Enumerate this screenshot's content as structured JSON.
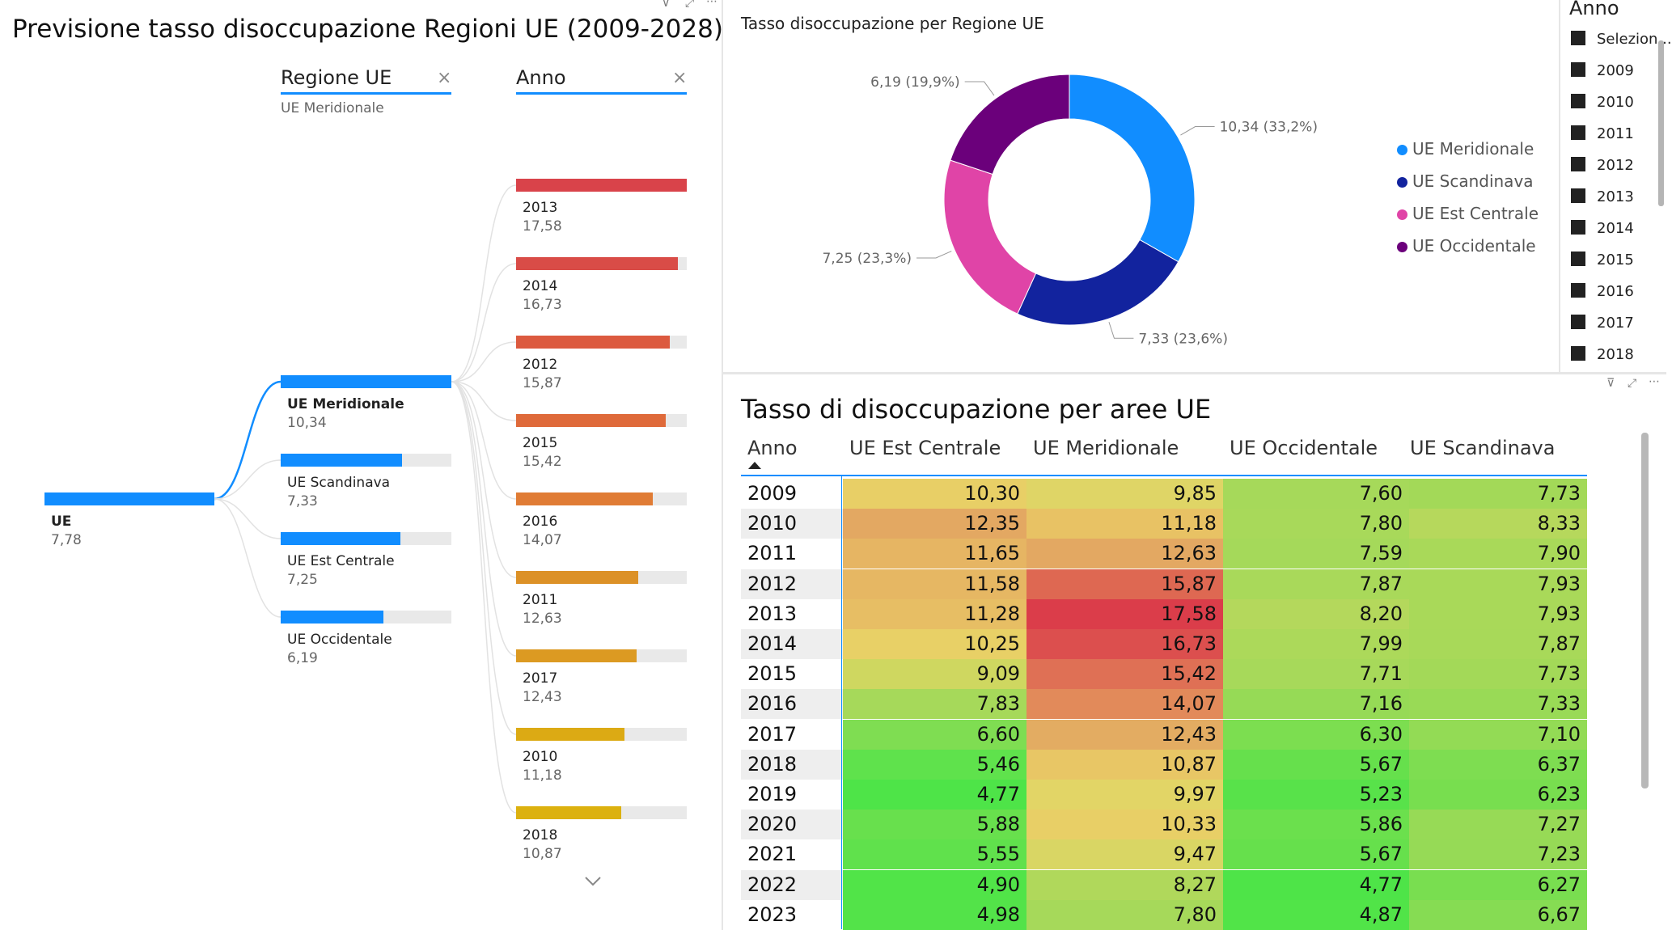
{
  "tree": {
    "title": "Previsione tasso disoccupazione Regioni UE (2009-2028)",
    "col1": {
      "header": "Regione UE",
      "filter": "UE Meridionale",
      "close": "×"
    },
    "col2": {
      "header": "Anno",
      "close": "×"
    },
    "root": {
      "label": "UE",
      "value": "7,78",
      "fraction": 1.0
    },
    "regions": [
      {
        "label": "UE Meridionale",
        "value": "10,34",
        "fraction": 1.0
      },
      {
        "label": "UE Scandinava",
        "value": "7,33",
        "fraction": 0.71
      },
      {
        "label": "UE Est Centrale",
        "value": "7,25",
        "fraction": 0.7
      },
      {
        "label": "UE Occidentale",
        "value": "6,19",
        "fraction": 0.6
      }
    ],
    "years": [
      {
        "label": "2013",
        "value": "17,58",
        "fraction": 1.0,
        "color": "#d9434a"
      },
      {
        "label": "2014",
        "value": "16,73",
        "fraction": 0.95,
        "color": "#d94c47"
      },
      {
        "label": "2012",
        "value": "15,87",
        "fraction": 0.9,
        "color": "#dc5a3f"
      },
      {
        "label": "2015",
        "value": "15,42",
        "fraction": 0.877,
        "color": "#df6a3a"
      },
      {
        "label": "2016",
        "value": "14,07",
        "fraction": 0.8,
        "color": "#e07c35"
      },
      {
        "label": "2011",
        "value": "12,63",
        "fraction": 0.718,
        "color": "#dc9127"
      },
      {
        "label": "2017",
        "value": "12,43",
        "fraction": 0.707,
        "color": "#dc9a22"
      },
      {
        "label": "2010",
        "value": "11,18",
        "fraction": 0.636,
        "color": "#dcaa14"
      },
      {
        "label": "2018",
        "value": "10,87",
        "fraction": 0.618,
        "color": "#dcb10f"
      }
    ],
    "expand_icon": "chevron-down"
  },
  "donut": {
    "title": "Tasso disoccupazione per Regione UE",
    "slices": [
      {
        "name": "UE Meridionale",
        "value": 10.34,
        "label": "10,34 (33,2%)",
        "color": "#118dff"
      },
      {
        "name": "UE Scandinava",
        "value": 7.33,
        "label": "7,33 (23,6%)",
        "color": "#12239e"
      },
      {
        "name": "UE Est Centrale",
        "value": 7.25,
        "label": "7,25 (23,3%)",
        "color": "#e044a7"
      },
      {
        "name": "UE Occidentale",
        "value": 6.19,
        "label": "6,19 (19,9%)",
        "color": "#6b007b"
      }
    ]
  },
  "slicer": {
    "title": "Anno",
    "items": [
      "Selezion...",
      "2009",
      "2010",
      "2011",
      "2012",
      "2013",
      "2014",
      "2015",
      "2016",
      "2017",
      "2018"
    ]
  },
  "matrix": {
    "title": "Tasso di disoccupazione per aree UE",
    "headers": [
      "Anno",
      "UE Est Centrale",
      "UE Meridionale",
      "UE Occidentale",
      "UE Scandinava"
    ],
    "rows": [
      {
        "year": "2009",
        "values": [
          "10,30",
          "9,85",
          "7,60",
          "7,73"
        ],
        "colors": [
          "#e8cf66",
          "#dfd566",
          "#a6d95a",
          "#a3d958"
        ]
      },
      {
        "year": "2010",
        "values": [
          "12,35",
          "11,18",
          "7,80",
          "8,33"
        ],
        "colors": [
          "#e3a862",
          "#e8c264",
          "#a8d95a",
          "#b6d85c"
        ]
      },
      {
        "year": "2011",
        "values": [
          "11,65",
          "12,63",
          "7,59",
          "7,90"
        ],
        "colors": [
          "#e6b563",
          "#e3a862",
          "#a5d95a",
          "#a9d959"
        ]
      },
      {
        "year": "2012",
        "values": [
          "11,58",
          "15,87",
          "7,87",
          "7,93"
        ],
        "colors": [
          "#e6b763",
          "#de6852",
          "#a9d95a",
          "#a9d959"
        ]
      },
      {
        "year": "2013",
        "values": [
          "11,28",
          "17,58",
          "8,20",
          "7,93"
        ],
        "colors": [
          "#e7be64",
          "#db3d4a",
          "#b4d85c",
          "#a9d959"
        ]
      },
      {
        "year": "2014",
        "values": [
          "10,25",
          "16,73",
          "7,99",
          "7,87"
        ],
        "colors": [
          "#e8d066",
          "#dc4f4e",
          "#acd95a",
          "#a8d959"
        ]
      },
      {
        "year": "2015",
        "values": [
          "9,09",
          "15,42",
          "7,71",
          "7,73"
        ],
        "colors": [
          "#cfd760",
          "#df7055",
          "#a7d95a",
          "#a3d958"
        ]
      },
      {
        "year": "2016",
        "values": [
          "7,83",
          "14,07",
          "7,16",
          "7,33"
        ],
        "colors": [
          "#a6d95a",
          "#e28a5a",
          "#96da56",
          "#99da56"
        ]
      },
      {
        "year": "2017",
        "values": [
          "6,60",
          "12,43",
          "6,30",
          "7,10"
        ],
        "colors": [
          "#7fdd52",
          "#e3ac62",
          "#7cde50",
          "#93db55"
        ]
      },
      {
        "year": "2018",
        "values": [
          "5,46",
          "10,87",
          "5,67",
          "6,37"
        ],
        "colors": [
          "#5fe24c",
          "#e8c665",
          "#66e04c",
          "#7edd51"
        ]
      },
      {
        "year": "2019",
        "values": [
          "4,77",
          "9,97",
          "5,23",
          "6,23"
        ],
        "colors": [
          "#4ee448",
          "#e2d566",
          "#58e24a",
          "#78de4f"
        ]
      },
      {
        "year": "2020",
        "values": [
          "5,88",
          "10,33",
          "5,86",
          "7,27"
        ],
        "colors": [
          "#68e04d",
          "#e8cf66",
          "#6be04d",
          "#97da56"
        ]
      },
      {
        "year": "2021",
        "values": [
          "5,55",
          "9,47",
          "5,67",
          "7,23"
        ],
        "colors": [
          "#60e14c",
          "#d9d664",
          "#66e04c",
          "#96da56"
        ]
      },
      {
        "year": "2022",
        "values": [
          "4,90",
          "8,27",
          "4,77",
          "6,27"
        ],
        "colors": [
          "#51e448",
          "#b0d85b",
          "#4ee448",
          "#79de50"
        ]
      },
      {
        "year": "2023",
        "values": [
          "4,98",
          "7,80",
          "4,87",
          "6,67"
        ],
        "colors": [
          "#53e349",
          "#a6d95a",
          "#51e448",
          "#86dc53"
        ]
      }
    ]
  }
}
